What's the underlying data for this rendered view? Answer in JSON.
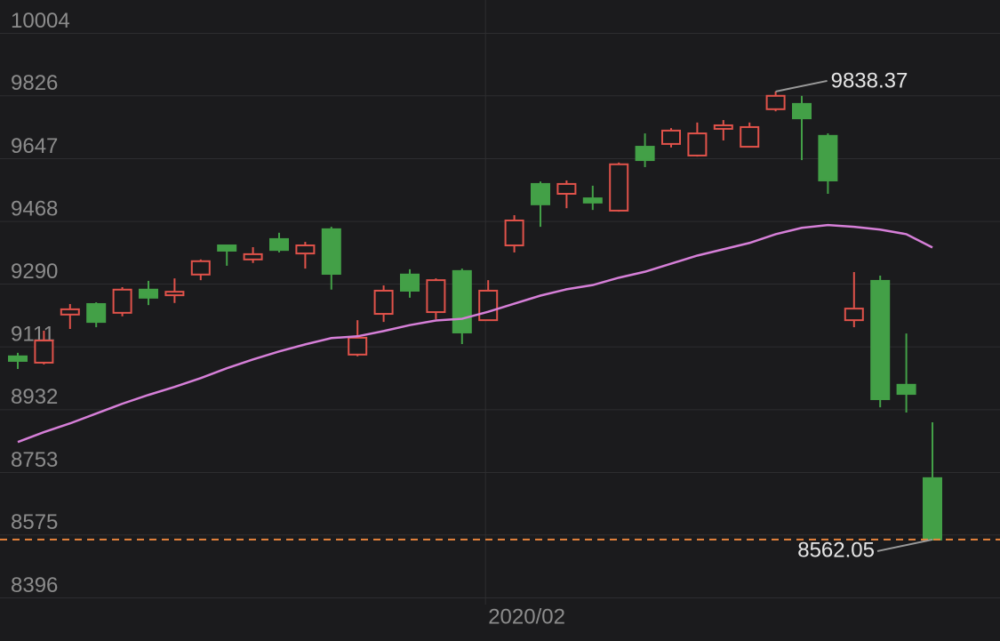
{
  "chart_data": {
    "type": "candlestick",
    "categories": [
      null,
      null,
      null,
      null,
      null,
      null,
      null,
      null,
      null,
      null,
      null,
      null,
      null,
      null,
      null,
      null,
      null,
      null,
      "2020/02",
      null,
      null,
      null,
      null,
      null,
      null,
      null,
      null,
      null,
      null,
      null,
      null,
      null,
      null,
      null,
      null,
      null
    ],
    "open": [
      9084,
      9066,
      9203,
      9233,
      9208,
      9274,
      9258,
      9317,
      9400,
      9360,
      9418,
      9377,
      9446,
      9089,
      9205,
      9317,
      9210,
      9327,
      9187,
      9400,
      9575,
      9547,
      9534,
      9499,
      9681,
      9689,
      9656,
      9732,
      9681,
      9788,
      9803,
      9712,
      9187,
      9299,
      9003,
      8737
    ],
    "high": [
      9094,
      9157,
      9233,
      9238,
      9281,
      9299,
      9306,
      9360,
      9400,
      9395,
      9436,
      9410,
      9453,
      9187,
      9286,
      9332,
      9306,
      9334,
      9301,
      9486,
      9582,
      9585,
      9570,
      9636,
      9719,
      9734,
      9750,
      9757,
      9750,
      9838.37,
      9826,
      9719,
      9324,
      9314,
      9149,
      8896
    ],
    "low": [
      9048,
      9061,
      9162,
      9167,
      9198,
      9230,
      9236,
      9301,
      9342,
      9350,
      9380,
      9334,
      9274,
      9084,
      9182,
      9251,
      9190,
      9119,
      9185,
      9380,
      9453,
      9506,
      9501,
      9496,
      9623,
      9679,
      9653,
      9699,
      9679,
      9782,
      9643,
      9547,
      9167,
      8939,
      8924,
      8562.05
    ],
    "close": [
      9071,
      9129,
      9218,
      9182,
      9274,
      9251,
      9268,
      9355,
      9385,
      9375,
      9387,
      9400,
      9319,
      9137,
      9271,
      9271,
      9301,
      9152,
      9271,
      9471,
      9517,
      9575,
      9522,
      9631,
      9643,
      9727,
      9719,
      9742,
      9737,
      9826,
      9762,
      9585,
      9220,
      8962,
      8977,
      8562.05
    ],
    "ma": [
      8840,
      8868,
      8893,
      8921,
      8949,
      8974,
      8997,
      9022,
      9050,
      9075,
      9098,
      9118,
      9136,
      9141,
      9156,
      9173,
      9186,
      9191,
      9211,
      9234,
      9257,
      9275,
      9287,
      9308,
      9325,
      9348,
      9371,
      9389,
      9407,
      9432,
      9450,
      9458,
      9453,
      9445,
      9432,
      9394
    ],
    "up_color": "#e0524a",
    "down_color": "#43a047",
    "ma_color": "#d67fd8",
    "high_marker": 9838.37,
    "low_marker": 8562.05,
    "price_line": 8562.05,
    "price_line_color": "#e8843c",
    "ylim": [
      8377,
      10099
    ],
    "yticks": [
      8396,
      8575,
      8753,
      8932,
      9111,
      9290,
      9468,
      9647,
      9826,
      10004
    ],
    "grid": true
  }
}
